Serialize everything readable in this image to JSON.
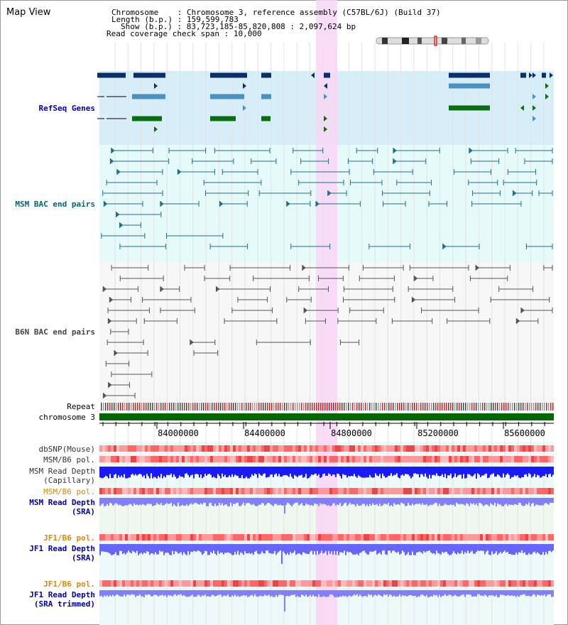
{
  "title": "Map View",
  "info": {
    "chromosome_key": "Chromosome",
    "chromosome_val": "Chromosome 3, reference assembly (C57BL/6J) (Build 37)",
    "length_key": "Length (b.p.)",
    "length_val": "159,599,783",
    "show_key": "Show (b.p.)",
    "show_val": "83,723,185-85,820,808 : 2,097,624 bp",
    "coverage_key": "Read coverage check span",
    "coverage_val": "10,000"
  },
  "tracks": {
    "refseq": "RefSeq Genes",
    "msm_bac": "MSM BAC end pairs",
    "b6n_bac": "B6N BAC end pairs",
    "repeat": "Repeat",
    "chromosome": "chromosome 3",
    "dbsnp": "dbSNP(Mouse)",
    "msm_b6_pol_1": "MSM/B6 pol.",
    "msm_depth_cap_1": "MSM Read Depth",
    "msm_depth_cap_2": "(Capillary)",
    "msm_b6_pol_2": "MSM/B6 pol.",
    "msm_depth_sra_1": "MSM Read Depth",
    "msm_depth_sra_2": "(SRA)",
    "jf1_b6_pol_1": "JF1/B6 pol.",
    "jf1_depth_sra_1": "JF1 Read Depth",
    "jf1_depth_sra_2": "(SRA)",
    "jf1_b6_pol_2": "JF1/B6 pol.",
    "jf1_depth_trim_1": "JF1 Read Depth",
    "jf1_depth_trim_2": "(SRA trimmed)"
  },
  "axis": {
    "ticks": [
      "84000000",
      "84400000",
      "84800000",
      "85200000",
      "85600000"
    ]
  },
  "colors": {
    "refseq_label": "#0000aa",
    "msm_bac_label": "#006677",
    "b6n_bac_label": "#444444",
    "pol_orange": "#dd8800",
    "depth_blue": "#0000aa",
    "refseq_bg": "#d7eef8",
    "msm_bg": "#e6fafa",
    "highlight": "#f8d6f4",
    "chromosome_green": "#006600",
    "gene_navy": "#0b2f68",
    "gene_blue": "#4a90c0",
    "gene_green": "#0a6e10"
  }
}
